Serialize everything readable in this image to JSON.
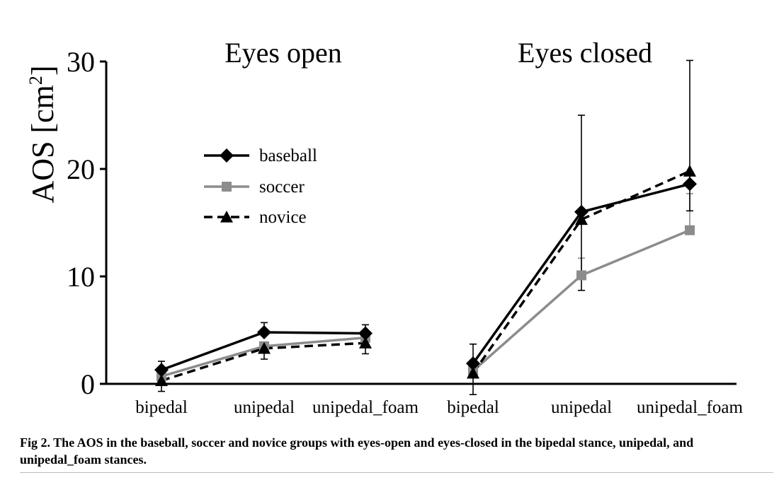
{
  "chart_data": {
    "type": "line",
    "ylabel": "AOS [cm",
    "ylabel_sup": "2",
    "ylabel_close": "]",
    "ylim": [
      0,
      30
    ],
    "yticks": [
      0,
      10,
      20,
      30
    ],
    "panels": [
      {
        "title": "Eyes open",
        "categories": [
          "bipedal",
          "unipedal",
          "unipedal_foam"
        ]
      },
      {
        "title": "Eyes closed",
        "categories": [
          "bipedal",
          "unipedal",
          "unipedal_foam"
        ]
      }
    ],
    "legend_position": "upper-left",
    "series": [
      {
        "name": "baseball",
        "color": "#000000",
        "marker": "diamond",
        "line": "solid",
        "values": [
          [
            1.3,
            4.8,
            4.7
          ],
          [
            1.9,
            16.0,
            18.6
          ]
        ],
        "error": [
          [
            0.8,
            0.9,
            0.8
          ],
          [
            1.8,
            9.0,
            11.5
          ]
        ]
      },
      {
        "name": "soccer",
        "color": "#8c8c8c",
        "marker": "square",
        "line": "solid",
        "values": [
          [
            0.7,
            3.5,
            4.3
          ],
          [
            1.2,
            10.1,
            14.3
          ]
        ],
        "error": [
          [
            0,
            0,
            0
          ],
          [
            0,
            1.6,
            3.4
          ]
        ]
      },
      {
        "name": "novice",
        "color": "#000000",
        "marker": "triangle",
        "line": "dashed",
        "values": [
          [
            0.3,
            3.3,
            3.8
          ],
          [
            1.0,
            15.3,
            19.8
          ]
        ],
        "error": [
          [
            1.0,
            1.0,
            1.0
          ],
          [
            2.0,
            6.6,
            3.7
          ]
        ]
      }
    ]
  },
  "caption": "Fig 2.  The AOS in the baseball, soccer and novice groups with eyes-open and eyes-closed in the bipedal stance, unipedal, and unipedal_foam stances."
}
